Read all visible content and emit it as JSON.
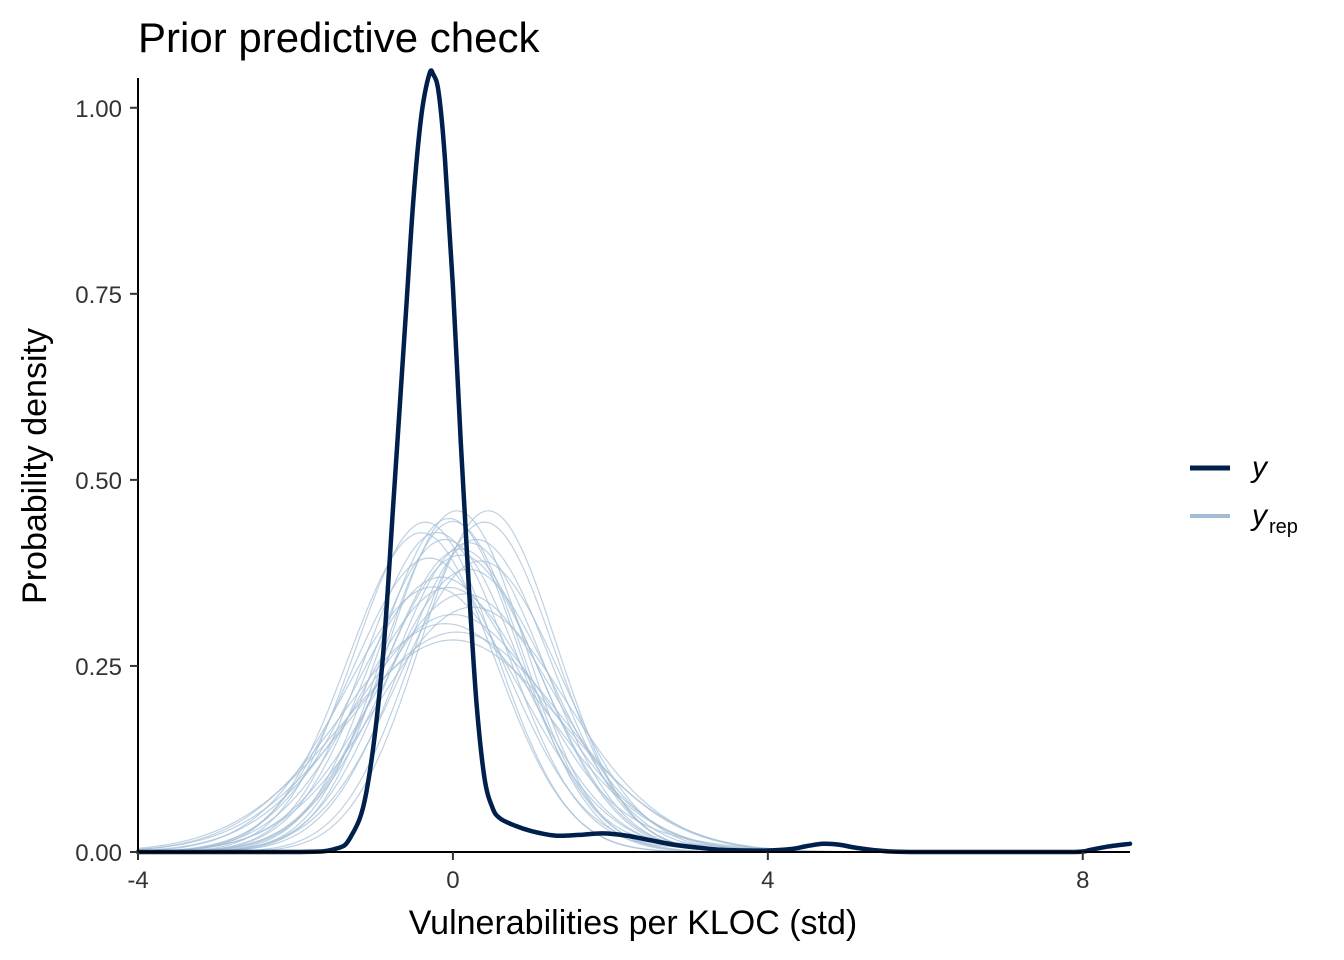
{
  "chart_data": {
    "type": "line",
    "title": "Prior predictive check",
    "xlabel": "Vulnerabilities per KLOC (std)",
    "ylabel": "Probability density",
    "xlim": [
      -4,
      8.6
    ],
    "ylim": [
      0,
      1.04
    ],
    "x_ticks": [
      {
        "value": -4,
        "label": "-4"
      },
      {
        "value": 0,
        "label": "0"
      },
      {
        "value": 4,
        "label": "4"
      },
      {
        "value": 8,
        "label": "8"
      }
    ],
    "y_ticks": [
      {
        "value": 0,
        "label": "0.00"
      },
      {
        "value": 0.25,
        "label": "0.25"
      },
      {
        "value": 0.5,
        "label": "0.50"
      },
      {
        "value": 0.75,
        "label": "0.75"
      },
      {
        "value": 1,
        "label": "1.00"
      }
    ],
    "grid": false,
    "legend": {
      "position": "right",
      "entries": [
        {
          "label": "y",
          "sub": "",
          "color": "#011f4b"
        },
        {
          "label": "y",
          "sub": "rep",
          "color": "#a3bdd6"
        }
      ]
    },
    "series": [
      {
        "name": "y",
        "color": "#011f4b",
        "points": [
          [
            -4.0,
            0.0
          ],
          [
            -2.0,
            0.0
          ],
          [
            -1.5,
            0.004
          ],
          [
            -1.3,
            0.02
          ],
          [
            -1.1,
            0.08
          ],
          [
            -0.9,
            0.25
          ],
          [
            -0.75,
            0.48
          ],
          [
            -0.6,
            0.72
          ],
          [
            -0.5,
            0.88
          ],
          [
            -0.4,
            0.99
          ],
          [
            -0.3,
            1.045
          ],
          [
            -0.25,
            1.045
          ],
          [
            -0.18,
            1.02
          ],
          [
            -0.1,
            0.93
          ],
          [
            0.0,
            0.76
          ],
          [
            0.1,
            0.55
          ],
          [
            0.2,
            0.36
          ],
          [
            0.3,
            0.2
          ],
          [
            0.4,
            0.1
          ],
          [
            0.5,
            0.06
          ],
          [
            0.6,
            0.045
          ],
          [
            0.8,
            0.035
          ],
          [
            1.0,
            0.028
          ],
          [
            1.3,
            0.022
          ],
          [
            1.6,
            0.023
          ],
          [
            1.9,
            0.025
          ],
          [
            2.2,
            0.022
          ],
          [
            2.5,
            0.016
          ],
          [
            2.8,
            0.01
          ],
          [
            3.1,
            0.006
          ],
          [
            3.4,
            0.003
          ],
          [
            3.7,
            0.002
          ],
          [
            4.0,
            0.002
          ],
          [
            4.3,
            0.004
          ],
          [
            4.5,
            0.008
          ],
          [
            4.7,
            0.011
          ],
          [
            4.9,
            0.01
          ],
          [
            5.1,
            0.006
          ],
          [
            5.4,
            0.002
          ],
          [
            5.8,
            0.0
          ],
          [
            7.0,
            0.0
          ],
          [
            7.9,
            0.0
          ],
          [
            8.1,
            0.003
          ],
          [
            8.3,
            0.007
          ],
          [
            8.6,
            0.011
          ]
        ]
      }
    ],
    "replicates": {
      "name": "y_rep",
      "color": "#a3bdd6",
      "draws": [
        {
          "mu": -0.1,
          "sigma": 0.95,
          "tail": 0.0
        },
        {
          "mu": 0.0,
          "sigma": 0.88,
          "tail": 0.02
        },
        {
          "mu": 0.1,
          "sigma": 1.0,
          "tail": 0.0
        },
        {
          "mu": -0.2,
          "sigma": 0.92,
          "tail": 0.01
        },
        {
          "mu": 0.2,
          "sigma": 1.05,
          "tail": 0.0
        },
        {
          "mu": 0.05,
          "sigma": 0.87,
          "tail": 0.0
        },
        {
          "mu": -0.05,
          "sigma": 1.1,
          "tail": 0.02
        },
        {
          "mu": 0.3,
          "sigma": 0.95,
          "tail": 0.0
        },
        {
          "mu": -0.3,
          "sigma": 1.0,
          "tail": 0.01
        },
        {
          "mu": 0.15,
          "sigma": 1.15,
          "tail": 0.0
        },
        {
          "mu": 0.0,
          "sigma": 1.25,
          "tail": 0.0
        },
        {
          "mu": -0.15,
          "sigma": 1.08,
          "tail": 0.0
        },
        {
          "mu": 0.4,
          "sigma": 0.9,
          "tail": 0.0
        },
        {
          "mu": -0.4,
          "sigma": 0.93,
          "tail": 0.0
        },
        {
          "mu": 0.25,
          "sigma": 1.2,
          "tail": 0.01
        },
        {
          "mu": 0.1,
          "sigma": 0.98,
          "tail": 0.0
        },
        {
          "mu": -0.25,
          "sigma": 1.12,
          "tail": 0.0
        },
        {
          "mu": 0.05,
          "sigma": 1.35,
          "tail": 0.0
        },
        {
          "mu": 0.35,
          "sigma": 1.02,
          "tail": 0.0
        },
        {
          "mu": -0.1,
          "sigma": 1.3,
          "tail": 0.0
        },
        {
          "mu": 0.45,
          "sigma": 0.87,
          "tail": 0.0
        },
        {
          "mu": -0.35,
          "sigma": 0.9,
          "tail": 0.0
        },
        {
          "mu": 0.2,
          "sigma": 0.96,
          "tail": 0.0
        },
        {
          "mu": -0.05,
          "sigma": 0.89,
          "tail": 0.0
        },
        {
          "mu": 0.0,
          "sigma": 1.4,
          "tail": 0.0
        }
      ]
    }
  }
}
